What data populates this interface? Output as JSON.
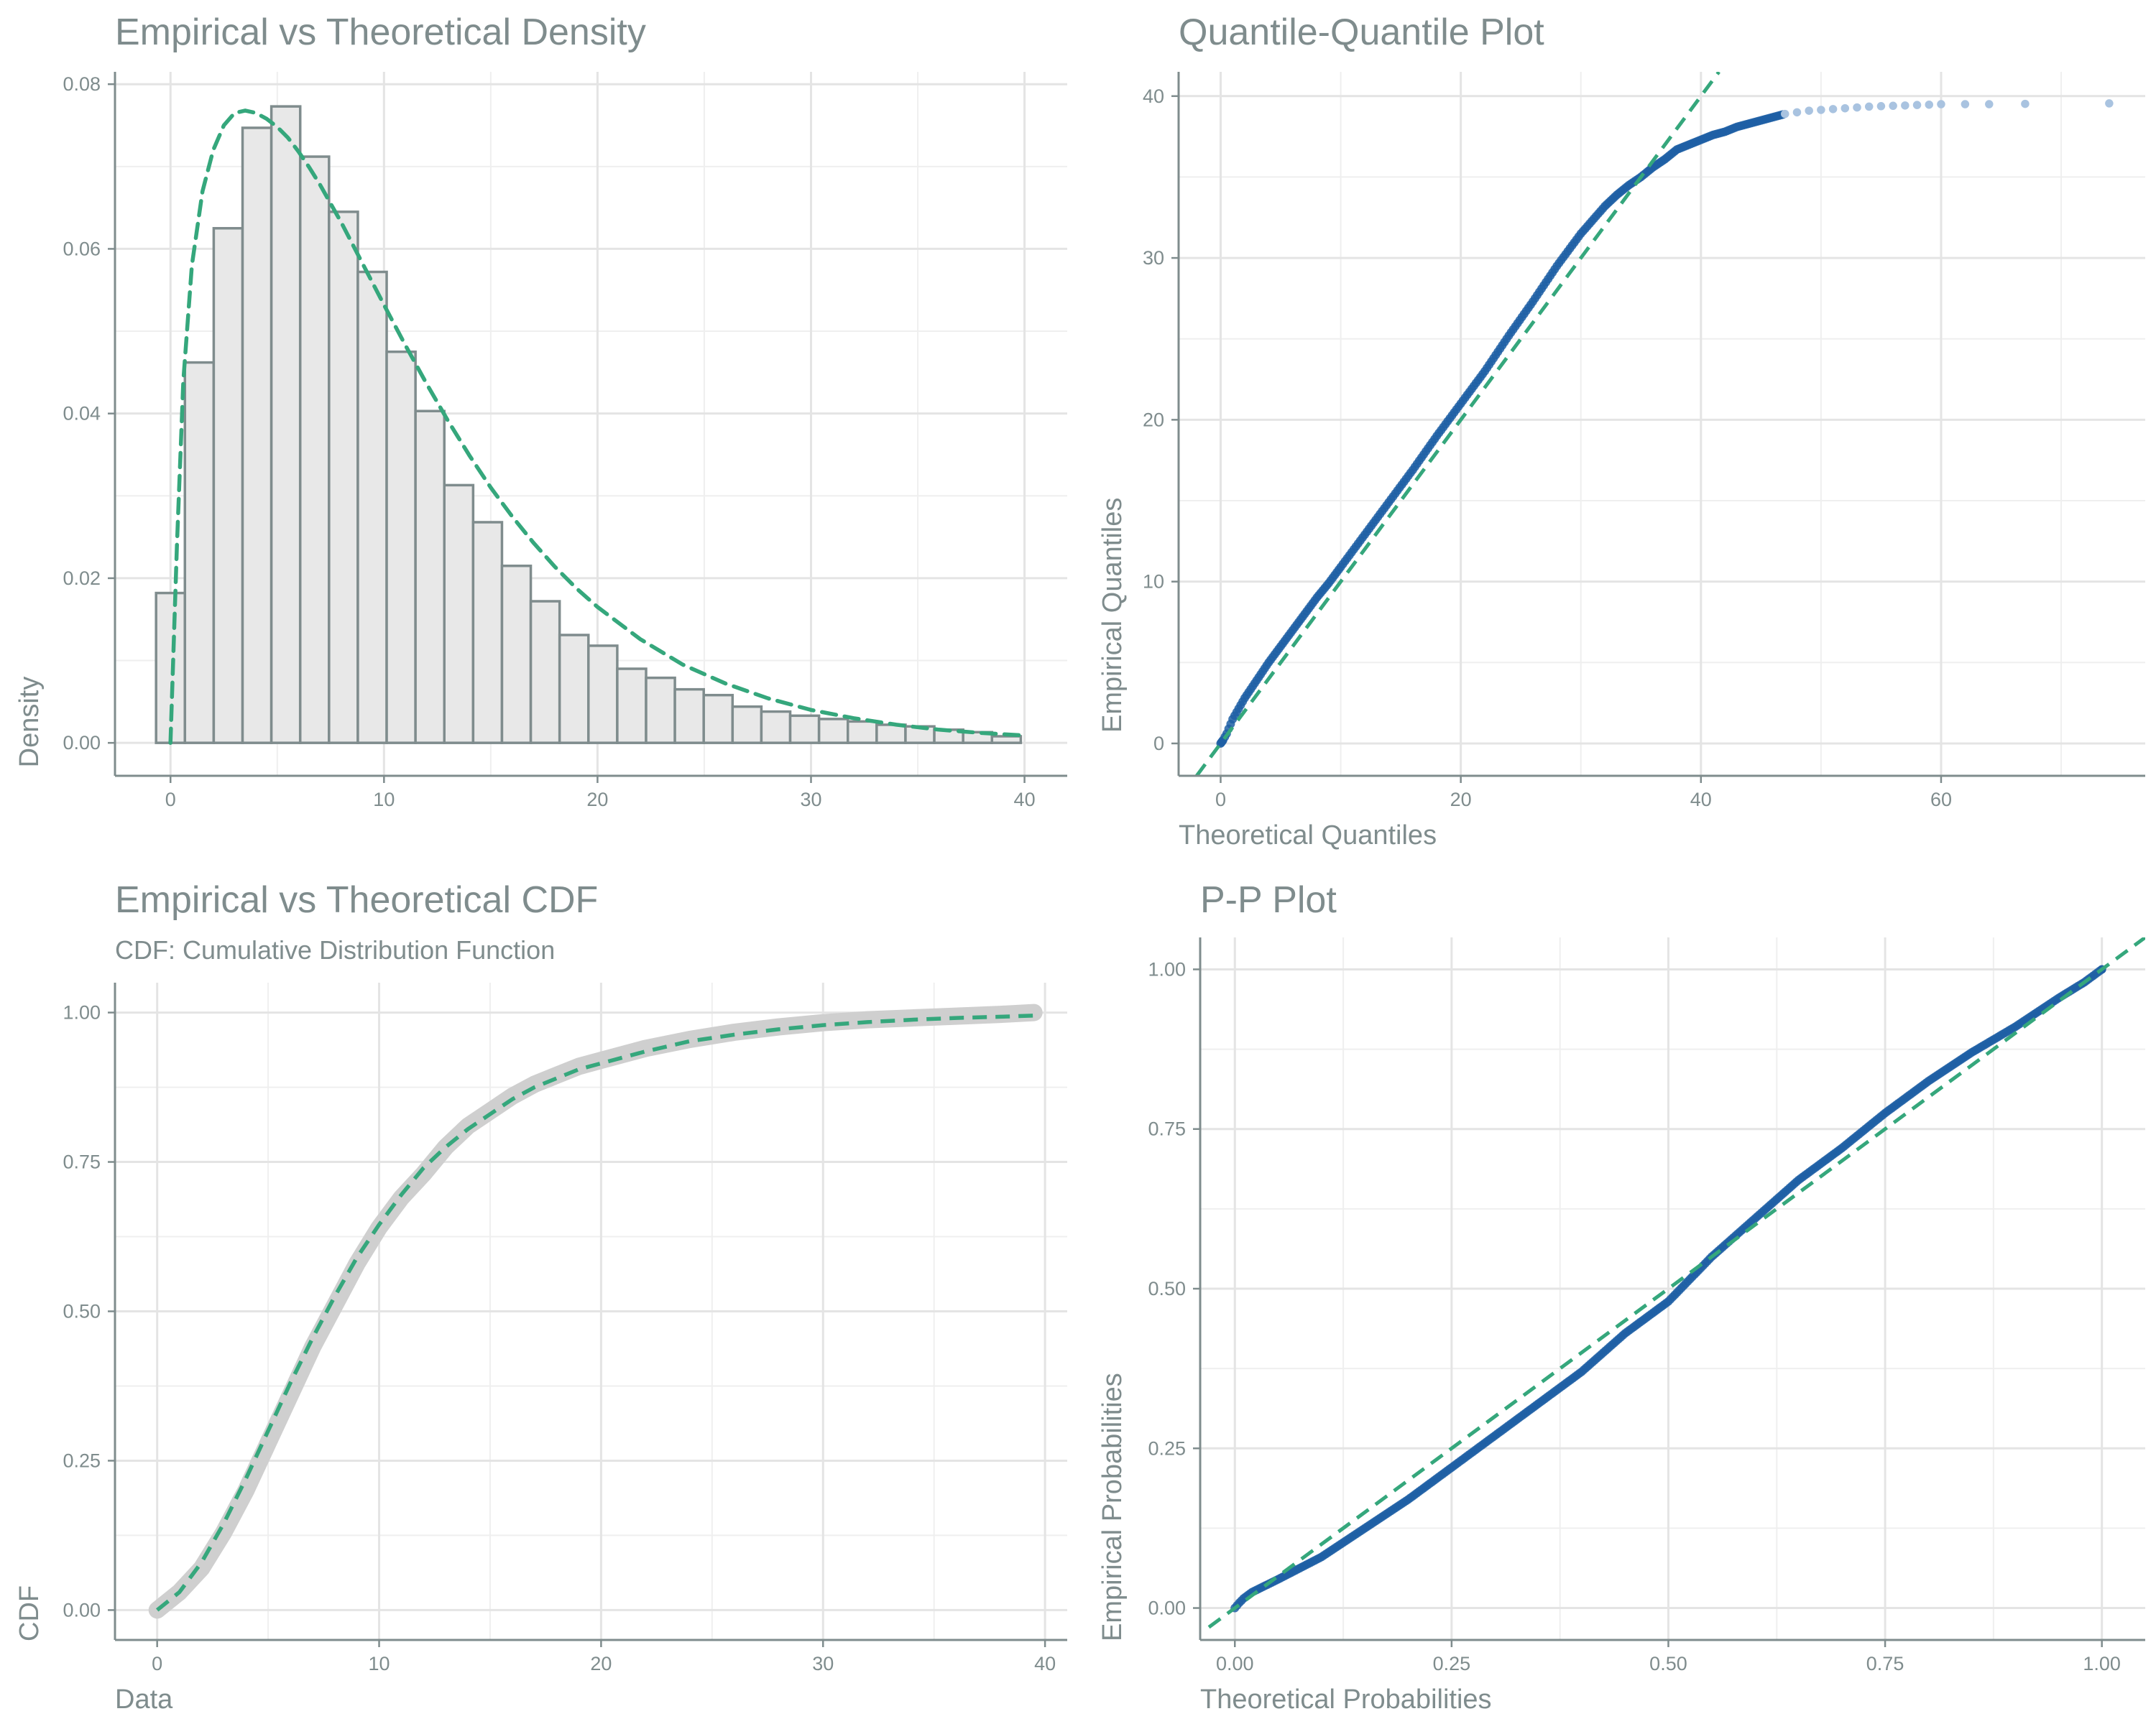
{
  "colors": {
    "fit": "#35a77c",
    "points": "#1f5fa4",
    "points_light": "#a9c3e0",
    "bar_fill": "#e8e8e8",
    "bar_stroke": "#7f8c8d",
    "cdf_band": "#cfcfcf",
    "text": "#7f8c8d"
  },
  "chart_data": [
    {
      "type": "bar",
      "title": "Empirical vs Theoretical Density",
      "subtitle": "",
      "xlabel": "",
      "ylabel": "Density",
      "xlim": [
        -2.6,
        42.0
      ],
      "ylim": [
        -0.004,
        0.0815
      ],
      "x_ticks": [
        0,
        10,
        20,
        30,
        40
      ],
      "y_ticks": [
        0.0,
        0.02,
        0.04,
        0.06,
        0.08
      ],
      "x_tick_labels": [
        "0",
        "10",
        "20",
        "30",
        "40"
      ],
      "y_tick_labels": [
        "0.00",
        "0.02",
        "0.04",
        "0.06",
        "0.08"
      ],
      "bin_width": 1.35,
      "bins": [
        {
          "x0": -0.675,
          "value": 0.0182
        },
        {
          "x0": 0.675,
          "value": 0.0462
        },
        {
          "x0": 2.025,
          "value": 0.0625
        },
        {
          "x0": 3.375,
          "value": 0.0747
        },
        {
          "x0": 4.725,
          "value": 0.0773
        },
        {
          "x0": 6.075,
          "value": 0.0712
        },
        {
          "x0": 7.425,
          "value": 0.0645
        },
        {
          "x0": 8.775,
          "value": 0.0572
        },
        {
          "x0": 10.125,
          "value": 0.0475
        },
        {
          "x0": 11.475,
          "value": 0.0403
        },
        {
          "x0": 12.825,
          "value": 0.0313
        },
        {
          "x0": 14.175,
          "value": 0.0268
        },
        {
          "x0": 15.525,
          "value": 0.0215
        },
        {
          "x0": 16.875,
          "value": 0.0172
        },
        {
          "x0": 18.225,
          "value": 0.0131
        },
        {
          "x0": 19.575,
          "value": 0.0118
        },
        {
          "x0": 20.925,
          "value": 0.009
        },
        {
          "x0": 22.275,
          "value": 0.0079
        },
        {
          "x0": 23.625,
          "value": 0.0065
        },
        {
          "x0": 24.975,
          "value": 0.0058
        },
        {
          "x0": 26.325,
          "value": 0.0044
        },
        {
          "x0": 27.675,
          "value": 0.0038
        },
        {
          "x0": 29.025,
          "value": 0.0033
        },
        {
          "x0": 30.375,
          "value": 0.0029
        },
        {
          "x0": 31.725,
          "value": 0.0026
        },
        {
          "x0": 33.075,
          "value": 0.0022
        },
        {
          "x0": 34.425,
          "value": 0.002
        },
        {
          "x0": 35.775,
          "value": 0.0016
        },
        {
          "x0": 37.125,
          "value": 0.0013
        },
        {
          "x0": 38.475,
          "value": 0.0008
        }
      ],
      "fit_curve": {
        "x": [
          0.0,
          0.3,
          0.6,
          1.0,
          1.5,
          2.0,
          2.5,
          3.0,
          3.5,
          4.0,
          4.5,
          5.0,
          5.5,
          6.0,
          6.5,
          7.0,
          8.0,
          9.0,
          10.0,
          11.0,
          12.0,
          13.0,
          14.0,
          15.0,
          16.0,
          17.0,
          18.0,
          19.0,
          20.0,
          22.0,
          24.0,
          26.0,
          28.0,
          30.0,
          32.0,
          34.0,
          36.0,
          38.0,
          40.0
        ],
        "y": [
          0.0,
          0.024,
          0.044,
          0.058,
          0.067,
          0.072,
          0.075,
          0.0765,
          0.0768,
          0.0765,
          0.0758,
          0.0748,
          0.0735,
          0.0718,
          0.0699,
          0.0678,
          0.0632,
          0.0582,
          0.0532,
          0.0483,
          0.0436,
          0.0391,
          0.0349,
          0.031,
          0.0275,
          0.0243,
          0.0214,
          0.0188,
          0.0165,
          0.0126,
          0.0095,
          0.0072,
          0.0054,
          0.004,
          0.003,
          0.0022,
          0.0016,
          0.0012,
          0.0009
        ]
      }
    },
    {
      "type": "scatter",
      "title": "Quantile-Quantile Plot",
      "subtitle": "",
      "xlabel": "Theoretical Quantiles",
      "ylabel": "Empirical Quantiles",
      "xlim": [
        -3.5,
        77.0
      ],
      "ylim": [
        -2.0,
        41.5
      ],
      "x_ticks": [
        0,
        20,
        40,
        60
      ],
      "y_ticks": [
        0,
        10,
        20,
        30,
        40
      ],
      "x_tick_labels": [
        "0",
        "20",
        "40",
        "60"
      ],
      "y_tick_labels": [
        "0",
        "10",
        "20",
        "30",
        "40"
      ],
      "reference_line": {
        "x": [
          -2.0,
          41.5
        ],
        "y": [
          -2.0,
          41.5
        ]
      },
      "points": {
        "x": [
          0.0,
          0.1,
          0.2,
          0.5,
          1.0,
          2.0,
          3.0,
          4.0,
          5.0,
          6.0,
          7.0,
          8.0,
          9.0,
          10.0,
          12.0,
          14.0,
          16.0,
          18.0,
          20.0,
          22.0,
          24.0,
          26.0,
          28.0,
          30.0,
          32.0,
          33.0,
          34.0,
          35.0,
          36.0,
          37.0,
          38.0,
          39.0,
          40.0,
          41.0,
          42.0,
          43.0,
          44.0,
          45.0,
          46.0,
          47.0,
          48.0,
          49.0,
          50.0,
          51.0,
          52.0,
          53.0,
          54.0,
          55.0,
          56.0,
          57.0,
          58.0,
          59.0,
          60.0,
          62.0,
          64.0,
          67.0,
          74.0
        ],
        "y": [
          0.0,
          0.1,
          0.2,
          0.6,
          1.5,
          2.8,
          3.9,
          5.0,
          6.0,
          7.0,
          8.0,
          9.0,
          9.9,
          10.9,
          12.9,
          14.9,
          16.9,
          19.0,
          21.0,
          23.0,
          25.2,
          27.3,
          29.5,
          31.5,
          33.2,
          33.9,
          34.5,
          35.0,
          35.6,
          36.1,
          36.7,
          37.0,
          37.3,
          37.6,
          37.8,
          38.1,
          38.3,
          38.5,
          38.7,
          38.9,
          39.0,
          39.1,
          39.15,
          39.2,
          39.25,
          39.3,
          39.35,
          39.38,
          39.4,
          39.42,
          39.45,
          39.47,
          39.5,
          39.5,
          39.5,
          39.52,
          39.55
        ]
      }
    },
    {
      "type": "line",
      "title": "Empirical vs Theoretical CDF",
      "subtitle": "CDF: Cumulative Distribution Function",
      "xlabel": "Data",
      "ylabel": "CDF",
      "xlim": [
        -1.9,
        41.0
      ],
      "ylim": [
        -0.05,
        1.05
      ],
      "x_ticks": [
        0,
        10,
        20,
        30,
        40
      ],
      "y_ticks": [
        0.0,
        0.25,
        0.5,
        0.75,
        1.0
      ],
      "x_tick_labels": [
        "0",
        "10",
        "20",
        "30",
        "40"
      ],
      "y_tick_labels": [
        "0.00",
        "0.25",
        "0.50",
        "0.75",
        "1.00"
      ],
      "series": [
        {
          "x": [
            0,
            1,
            2,
            3,
            4,
            5,
            6,
            7,
            8,
            9,
            10,
            11,
            12,
            13,
            14,
            15,
            16,
            17,
            18,
            19,
            20,
            22,
            24,
            26,
            28,
            30,
            32,
            34,
            36,
            38,
            39.5
          ],
          "y": [
            0.0,
            0.03,
            0.07,
            0.13,
            0.2,
            0.28,
            0.36,
            0.44,
            0.51,
            0.58,
            0.64,
            0.69,
            0.73,
            0.775,
            0.81,
            0.835,
            0.86,
            0.88,
            0.895,
            0.91,
            0.92,
            0.94,
            0.955,
            0.967,
            0.976,
            0.983,
            0.988,
            0.991,
            0.994,
            0.997,
            1.0
          ]
        },
        {
          "x": [
            0,
            1,
            2,
            3,
            4,
            5,
            6,
            7,
            8,
            9,
            10,
            11,
            12,
            13,
            14,
            15,
            16,
            17,
            18,
            19,
            20,
            22,
            24,
            26,
            28,
            30,
            32,
            34,
            36,
            38,
            39.5
          ],
          "y": [
            0.0,
            0.03,
            0.08,
            0.145,
            0.22,
            0.3,
            0.38,
            0.455,
            0.525,
            0.59,
            0.645,
            0.695,
            0.74,
            0.775,
            0.805,
            0.83,
            0.855,
            0.875,
            0.89,
            0.905,
            0.915,
            0.935,
            0.952,
            0.963,
            0.972,
            0.979,
            0.984,
            0.988,
            0.991,
            0.993,
            0.995
          ]
        }
      ]
    },
    {
      "type": "scatter",
      "title": "P-P Plot",
      "subtitle": "",
      "xlabel": "Theoretical Probabilities",
      "ylabel": "Empirical Probabilities",
      "xlim": [
        -0.04,
        1.05
      ],
      "ylim": [
        -0.05,
        1.05
      ],
      "x_ticks": [
        0.0,
        0.25,
        0.5,
        0.75,
        1.0
      ],
      "y_ticks": [
        0.0,
        0.25,
        0.5,
        0.75,
        1.0
      ],
      "x_tick_labels": [
        "0.00",
        "0.25",
        "0.50",
        "0.75",
        "1.00"
      ],
      "y_tick_labels": [
        "0.00",
        "0.25",
        "0.50",
        "0.75",
        "1.00"
      ],
      "reference_line": {
        "x": [
          -0.03,
          1.05
        ],
        "y": [
          -0.03,
          1.05
        ]
      },
      "points": {
        "x": [
          0.0,
          0.005,
          0.01,
          0.02,
          0.05,
          0.1,
          0.15,
          0.2,
          0.25,
          0.3,
          0.35,
          0.4,
          0.45,
          0.5,
          0.55,
          0.6,
          0.65,
          0.7,
          0.75,
          0.8,
          0.85,
          0.9,
          0.95,
          0.98,
          1.0
        ],
        "y": [
          0.0,
          0.008,
          0.015,
          0.025,
          0.045,
          0.08,
          0.125,
          0.17,
          0.22,
          0.27,
          0.32,
          0.37,
          0.43,
          0.48,
          0.55,
          0.61,
          0.67,
          0.72,
          0.775,
          0.825,
          0.87,
          0.91,
          0.955,
          0.98,
          1.0
        ]
      }
    }
  ]
}
